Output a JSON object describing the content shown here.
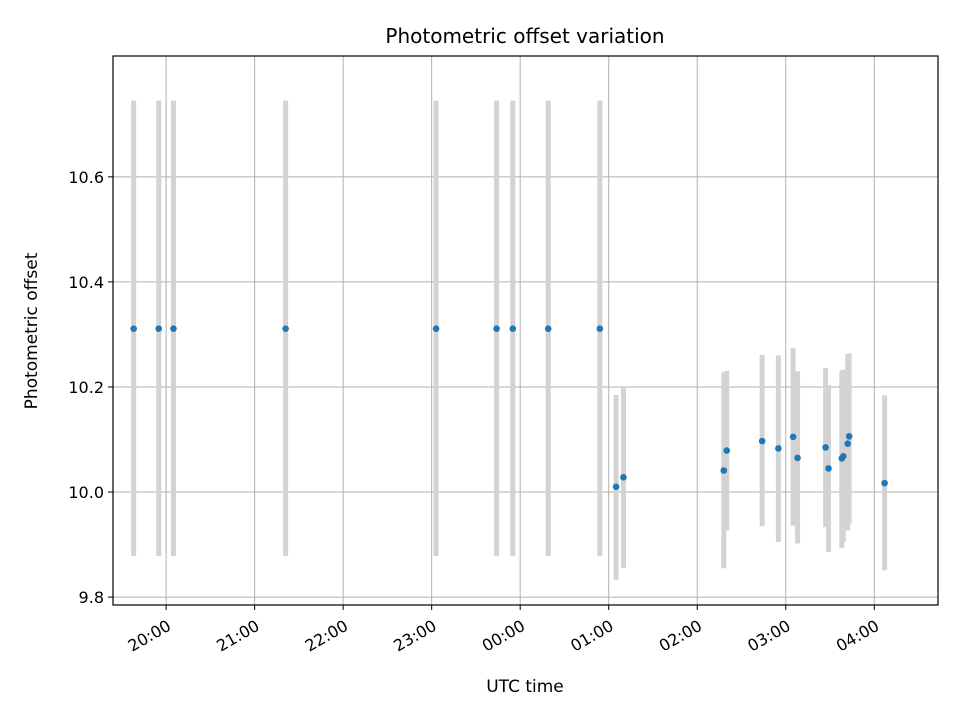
{
  "chart_data": {
    "type": "scatter",
    "title": "Photometric offset variation",
    "xlabel": "UTC time",
    "ylabel": "Photometric offset",
    "grid": true,
    "xlim": [
      19.4,
      28.72
    ],
    "ylim": [
      9.785,
      10.83
    ],
    "x_tick_values": [
      20,
      21,
      22,
      23,
      24,
      25,
      26,
      27,
      28
    ],
    "x_tick_labels": [
      "20:00",
      "21:00",
      "22:00",
      "23:00",
      "00:00",
      "01:00",
      "02:00",
      "03:00",
      "04:00"
    ],
    "y_tick_values": [
      9.8,
      10.0,
      10.2,
      10.4,
      10.6
    ],
    "y_tick_labels": [
      "9.8",
      "10.0",
      "10.2",
      "10.4",
      "10.6"
    ],
    "point_color": "#1f77b4",
    "errorbar_color": "#d3d3d3",
    "points": [
      {
        "x": "19:38",
        "y": 10.311,
        "ylow": 9.878,
        "yhigh": 10.745
      },
      {
        "x": "19:55",
        "y": 10.311,
        "ylow": 9.878,
        "yhigh": 10.745
      },
      {
        "x": "20:05",
        "y": 10.311,
        "ylow": 9.878,
        "yhigh": 10.745
      },
      {
        "x": "21:21",
        "y": 10.311,
        "ylow": 9.878,
        "yhigh": 10.745
      },
      {
        "x": "23:03",
        "y": 10.311,
        "ylow": 9.878,
        "yhigh": 10.745
      },
      {
        "x": "23:44",
        "y": 10.311,
        "ylow": 9.878,
        "yhigh": 10.745
      },
      {
        "x": "23:55",
        "y": 10.311,
        "ylow": 9.878,
        "yhigh": 10.745
      },
      {
        "x": "00:19",
        "y": 10.311,
        "ylow": 9.878,
        "yhigh": 10.745
      },
      {
        "x": "00:54",
        "y": 10.311,
        "ylow": 9.878,
        "yhigh": 10.745
      },
      {
        "x": "01:05",
        "y": 10.01,
        "ylow": 9.833,
        "yhigh": 10.185
      },
      {
        "x": "01:10",
        "y": 10.028,
        "ylow": 9.856,
        "yhigh": 10.2
      },
      {
        "x": "02:18",
        "y": 10.041,
        "ylow": 9.855,
        "yhigh": 10.228
      },
      {
        "x": "02:20",
        "y": 10.079,
        "ylow": 9.927,
        "yhigh": 10.231
      },
      {
        "x": "02:44",
        "y": 10.097,
        "ylow": 9.935,
        "yhigh": 10.261
      },
      {
        "x": "02:55",
        "y": 10.083,
        "ylow": 9.905,
        "yhigh": 10.26
      },
      {
        "x": "03:05",
        "y": 10.105,
        "ylow": 9.936,
        "yhigh": 10.274
      },
      {
        "x": "03:08",
        "y": 10.065,
        "ylow": 9.902,
        "yhigh": 10.23
      },
      {
        "x": "03:27",
        "y": 10.085,
        "ylow": 9.933,
        "yhigh": 10.236
      },
      {
        "x": "03:29",
        "y": 10.045,
        "ylow": 9.886,
        "yhigh": 10.204
      },
      {
        "x": "03:38",
        "y": 10.064,
        "ylow": 9.894,
        "yhigh": 10.231
      },
      {
        "x": "03:39",
        "y": 10.068,
        "ylow": 9.905,
        "yhigh": 10.233
      },
      {
        "x": "03:42",
        "y": 10.092,
        "ylow": 9.927,
        "yhigh": 10.262
      },
      {
        "x": "03:43",
        "y": 10.106,
        "ylow": 9.94,
        "yhigh": 10.264
      },
      {
        "x": "04:07",
        "y": 10.017,
        "ylow": 9.851,
        "yhigh": 10.184
      }
    ]
  }
}
